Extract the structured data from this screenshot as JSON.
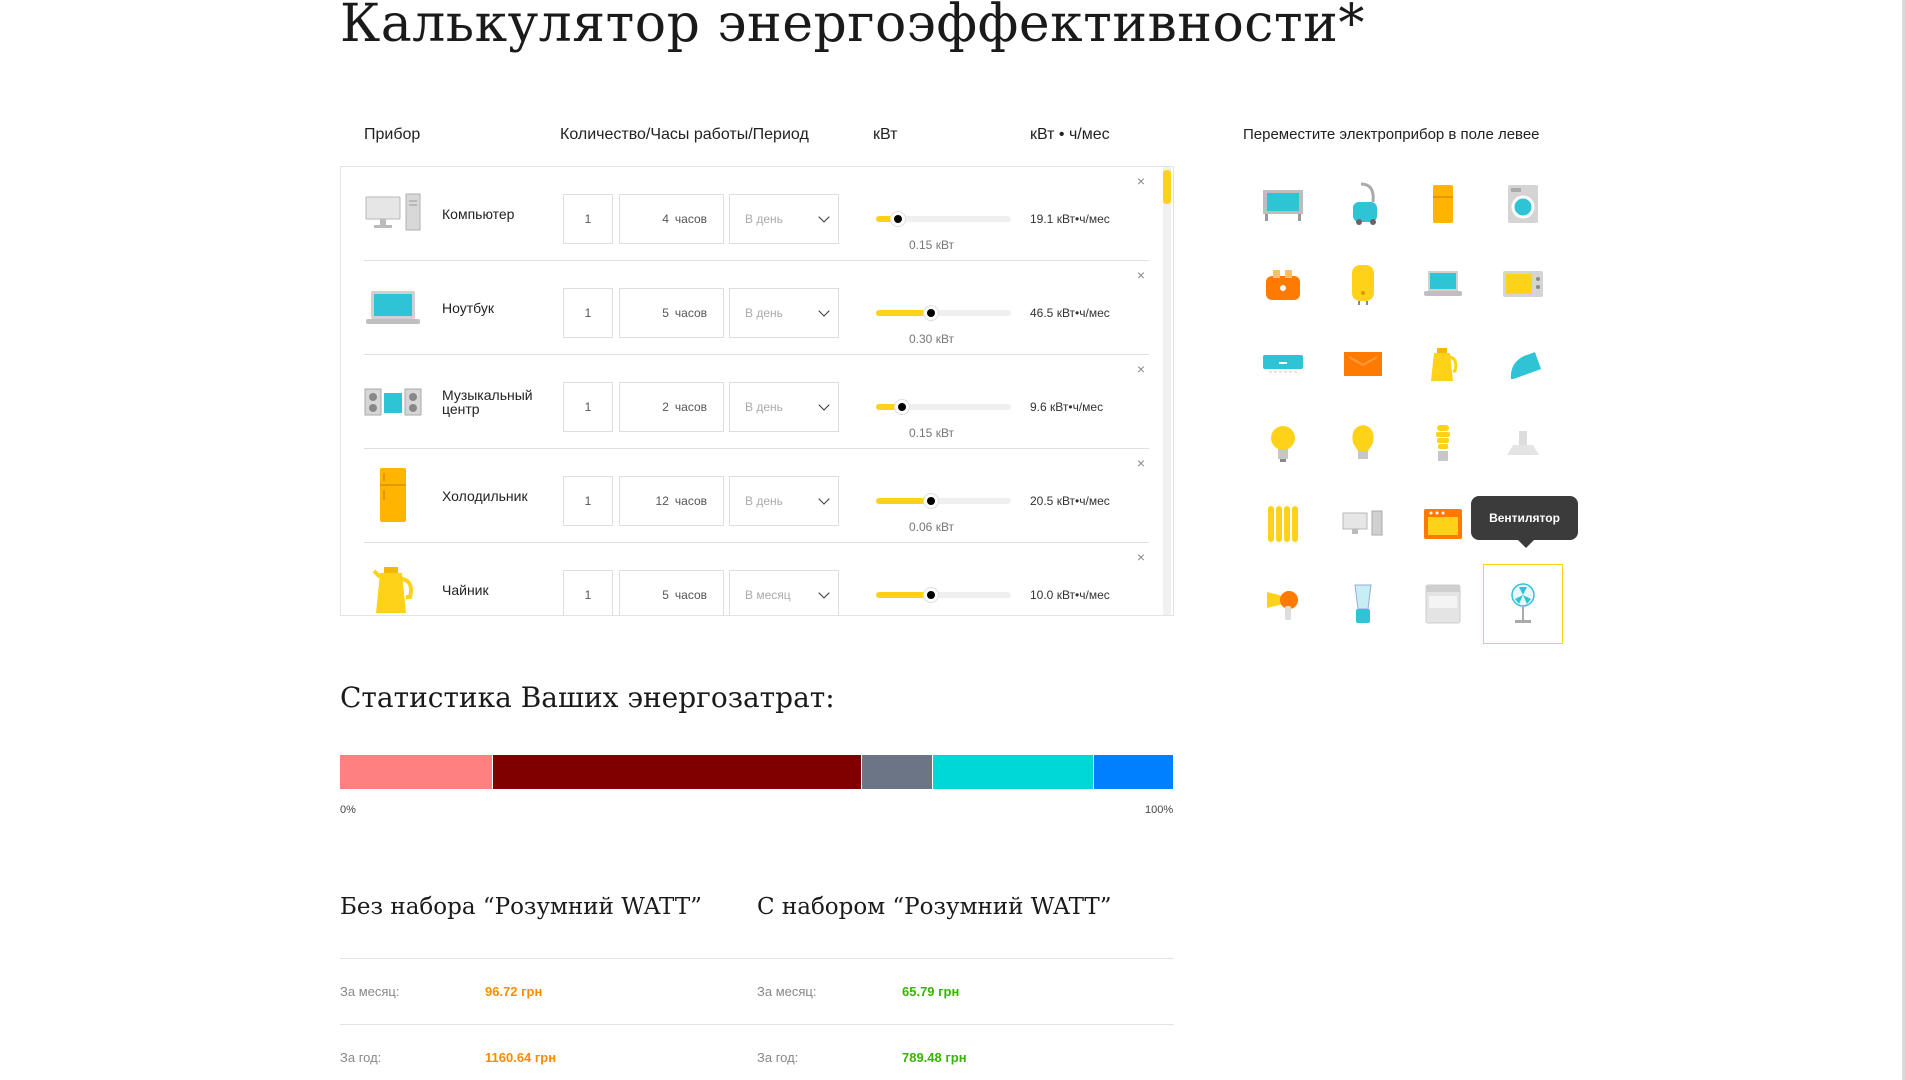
{
  "title": "Калькулятор энергоэффективности*",
  "table": {
    "headers": {
      "device": "Прибор",
      "qty": "Количество/Часы работы/Период",
      "kw": "кВт",
      "kwh": "кВт • ч/мес"
    },
    "close_glyph": "×",
    "rows": [
      {
        "name": "Компьютер",
        "qty": "1",
        "hours": "4",
        "hours_unit": "часов",
        "period": "В день",
        "slider_level": 0.16,
        "kw": "0.15 кВт",
        "usage": "19.1 кВт•ч/мес",
        "icon": "computer-icon"
      },
      {
        "name": "Ноутбук",
        "qty": "1",
        "hours": "5",
        "hours_unit": "часов",
        "period": "В день",
        "slider_level": 0.41,
        "kw": "0.30 кВт",
        "usage": "46.5 кВт•ч/мес",
        "icon": "laptop-icon"
      },
      {
        "name": "Музыкальный центр",
        "qty": "1",
        "hours": "2",
        "hours_unit": "часов",
        "period": "В день",
        "slider_level": 0.19,
        "kw": "0.15 кВт",
        "usage": "9.6 кВт•ч/мес",
        "icon": "music-center-icon"
      },
      {
        "name": "Холодильник",
        "qty": "1",
        "hours": "12",
        "hours_unit": "часов",
        "period": "В день",
        "slider_level": 0.41,
        "kw": "0.06 кВт",
        "usage": "20.5 кВт•ч/мес",
        "icon": "fridge-icon"
      },
      {
        "name": "Чайник",
        "qty": "1",
        "hours": "5",
        "hours_unit": "часов",
        "period": "В месяц",
        "slider_level": 0.41,
        "kw": "",
        "usage": "10.0 кВт•ч/мес",
        "icon": "kettle-icon"
      }
    ]
  },
  "palette": {
    "title": "Переместите электроприбор в поле левее",
    "tooltip": "Вентилятор",
    "items": [
      "tv-icon",
      "vacuum-icon",
      "fridge-icon",
      "washing-machine-icon",
      "toaster-icon",
      "boiler-icon",
      "laptop-icon",
      "microwave-icon",
      "air-conditioner-icon",
      "heater-panel-icon",
      "kettle-icon",
      "iron-icon",
      "lamp-icon",
      "bulb-icon",
      "energy-saving-bulb-icon",
      "range-hood-icon",
      "radiator-icon",
      "computer-icon",
      "oven-icon",
      "music-center-icon",
      "hair-dryer-icon",
      "blender-icon",
      "dishwasher-icon",
      "fan-icon"
    ],
    "selected": "fan-icon"
  },
  "stats": {
    "title": "Статистика Ваших энергозатрат:",
    "start": "0%",
    "end": "100%",
    "segments": [
      {
        "share": 0.184,
        "color": "#ff8080"
      },
      {
        "share": 0.442,
        "color": "#800000"
      },
      {
        "share": 0.085,
        "color": "#6b7585"
      },
      {
        "share": 0.193,
        "color": "#00d8d8"
      },
      {
        "share": 0.096,
        "color": "#0080ff"
      }
    ]
  },
  "summary": {
    "without": {
      "title": "Без набора “Розумний WATT”",
      "month_label": "За месяц:",
      "month": "96.72 грн",
      "year_label": "За год:",
      "year": "1160.64 грн",
      "color": "#ff8a00"
    },
    "with": {
      "title": "С набором “Розумний WATT”",
      "month_label": "За месяц:",
      "month": "65.79 грн",
      "year_label": "За год:",
      "year": "789.48 грн",
      "color": "#39b500"
    }
  }
}
